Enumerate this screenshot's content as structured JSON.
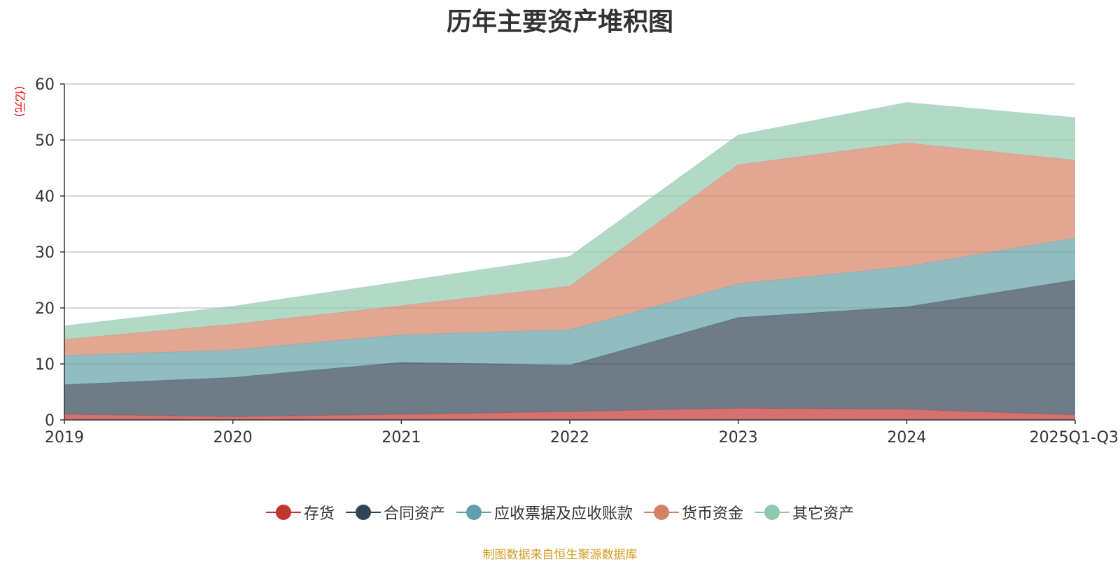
{
  "chart_data": {
    "type": "area",
    "stacked": true,
    "title": "历年主要资产堆积图",
    "ylabel": "(亿元)",
    "xlabel": "",
    "ylim": [
      0,
      60
    ],
    "yticks": [
      "0",
      "10",
      "20",
      "30",
      "40",
      "50",
      "60"
    ],
    "categories": [
      "2019",
      "2020",
      "2021",
      "2022",
      "2023",
      "2024",
      "2025Q1-Q3"
    ],
    "series": [
      {
        "name": "存货",
        "color": "#c23531",
        "values": [
          1.0,
          0.6,
          1.0,
          1.5,
          2.1,
          1.9,
          0.9
        ]
      },
      {
        "name": "合同资产",
        "color": "#2f4554",
        "values": [
          5.3,
          7.0,
          9.3,
          8.3,
          16.2,
          18.3,
          24.1
        ]
      },
      {
        "name": "应收票据及应收账款",
        "color": "#61a0a8",
        "values": [
          5.2,
          4.9,
          4.9,
          6.3,
          6.0,
          7.2,
          7.5
        ]
      },
      {
        "name": "货币资金",
        "color": "#d48265",
        "values": [
          2.9,
          4.6,
          5.2,
          7.8,
          21.3,
          22.1,
          13.9
        ]
      },
      {
        "name": "其它资产",
        "color": "#91c7ae",
        "values": [
          2.4,
          3.2,
          4.3,
          5.3,
          5.3,
          7.2,
          7.6
        ]
      }
    ]
  },
  "footer": "制图数据来自恒生聚源数据库"
}
